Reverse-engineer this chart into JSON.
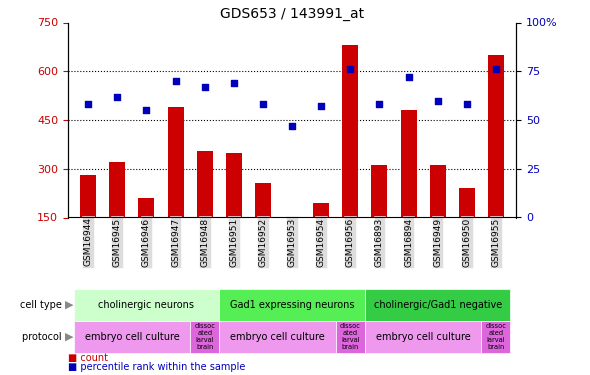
{
  "title": "GDS653 / 143991_at",
  "samples": [
    "GSM16944",
    "GSM16945",
    "GSM16946",
    "GSM16947",
    "GSM16948",
    "GSM16951",
    "GSM16952",
    "GSM16953",
    "GSM16954",
    "GSM16956",
    "GSM16893",
    "GSM16894",
    "GSM16949",
    "GSM16950",
    "GSM16955"
  ],
  "counts": [
    280,
    320,
    210,
    490,
    355,
    350,
    255,
    145,
    195,
    680,
    310,
    480,
    310,
    240,
    650
  ],
  "percentiles": [
    58,
    62,
    55,
    70,
    67,
    69,
    58,
    47,
    57,
    76,
    58,
    72,
    60,
    58,
    76
  ],
  "ylim_left": [
    150,
    750
  ],
  "ylim_right": [
    0,
    100
  ],
  "yticks_left": [
    150,
    300,
    450,
    600,
    750
  ],
  "yticks_right": [
    0,
    25,
    50,
    75,
    100
  ],
  "grid_lines": [
    300,
    450,
    600
  ],
  "bar_color": "#cc0000",
  "dot_color": "#0000bb",
  "cell_type_groups": [
    {
      "label": "cholinergic neurons",
      "start": 0,
      "end": 4,
      "color": "#ccffcc"
    },
    {
      "label": "Gad1 expressing neurons",
      "start": 5,
      "end": 9,
      "color": "#55ee55"
    },
    {
      "label": "cholinergic/Gad1 negative",
      "start": 10,
      "end": 14,
      "color": "#33cc44"
    }
  ],
  "protocol_groups": [
    {
      "label": "embryo cell culture",
      "start": 0,
      "end": 3,
      "color": "#ee99ee"
    },
    {
      "label": "dissoc\nated\nlarval\nbrain",
      "start": 4,
      "end": 4,
      "color": "#dd66dd"
    },
    {
      "label": "embryo cell culture",
      "start": 5,
      "end": 8,
      "color": "#ee99ee"
    },
    {
      "label": "dissoc\nated\nlarval\nbrain",
      "start": 9,
      "end": 9,
      "color": "#dd66dd"
    },
    {
      "label": "embryo cell culture",
      "start": 10,
      "end": 13,
      "color": "#ee99ee"
    },
    {
      "label": "dissoc\nated\nlarval\nbrain",
      "start": 14,
      "end": 14,
      "color": "#dd66dd"
    }
  ]
}
